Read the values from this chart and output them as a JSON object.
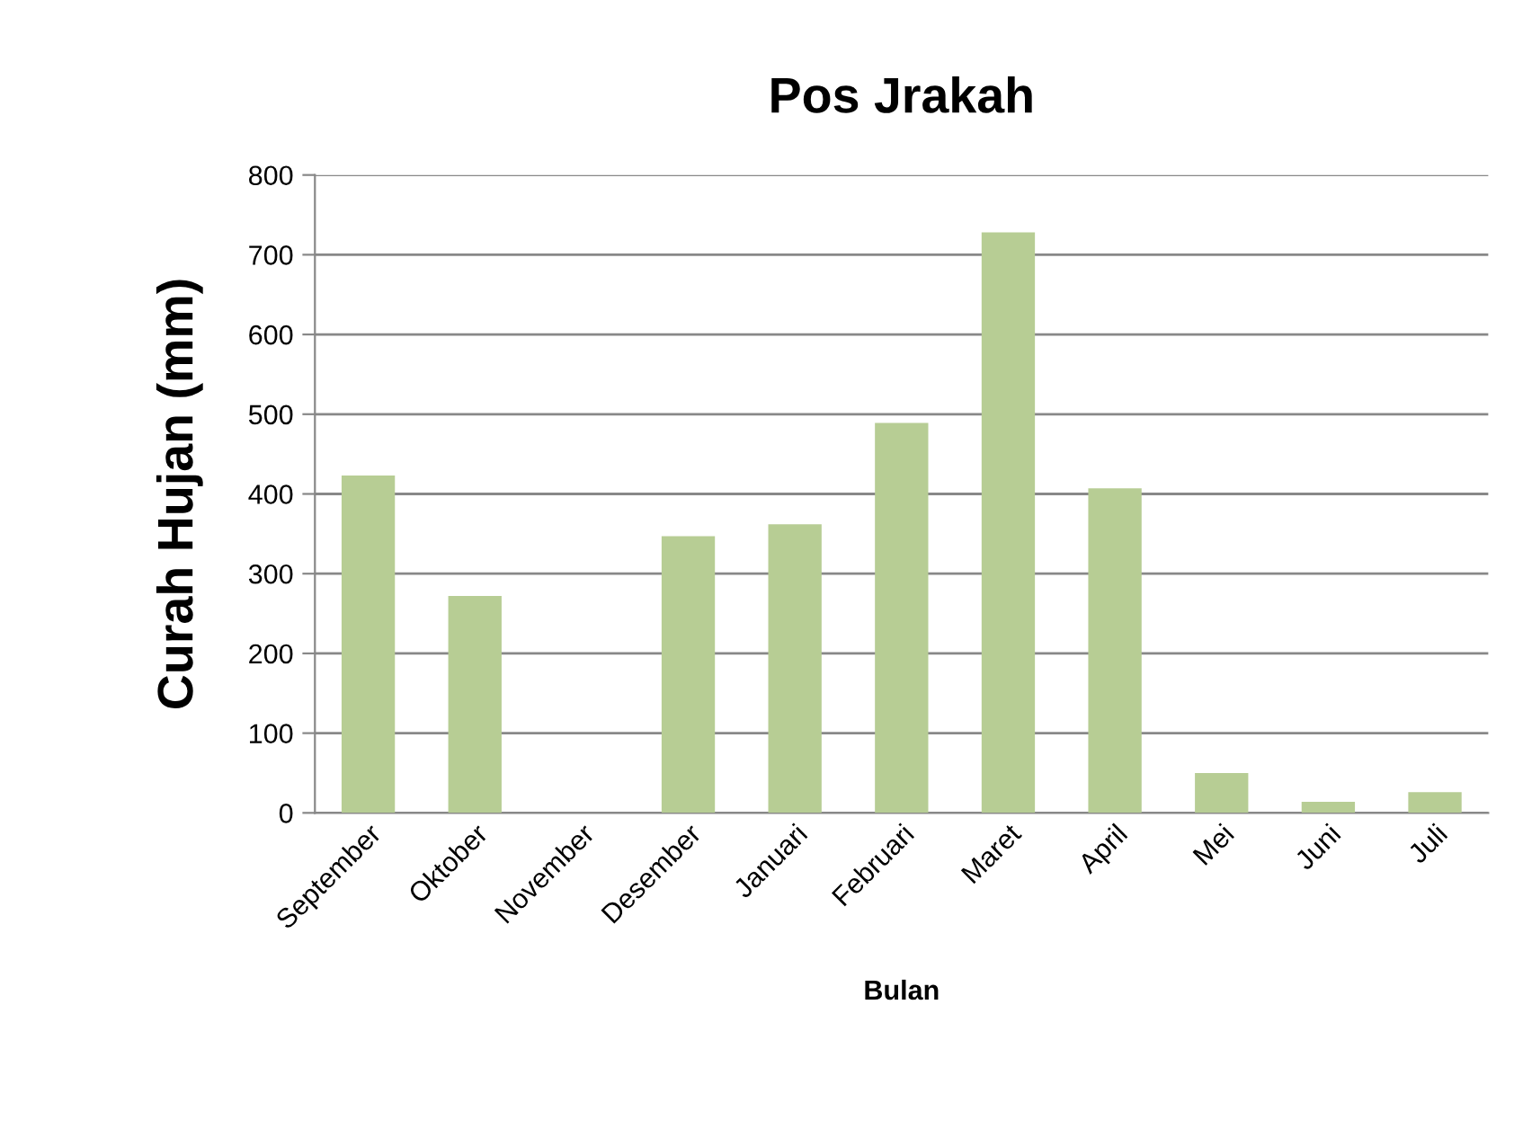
{
  "chart_data": {
    "type": "bar",
    "title": "Pos Jrakah",
    "xlabel": "Bulan",
    "ylabel": "Curah Hujan (mm)",
    "categories": [
      "September",
      "Oktober",
      "November",
      "Desember",
      "Januari",
      "Februari",
      "Maret",
      "April",
      "Mei",
      "Juni",
      "Juli"
    ],
    "values": [
      423,
      272,
      0,
      347,
      362,
      489,
      728,
      407,
      50,
      14,
      26
    ],
    "color": "#b7cd94",
    "ylim": [
      0,
      800
    ],
    "yticks": [
      0,
      100,
      200,
      300,
      400,
      500,
      600,
      700,
      800
    ],
    "grid": "y",
    "legend": false
  }
}
